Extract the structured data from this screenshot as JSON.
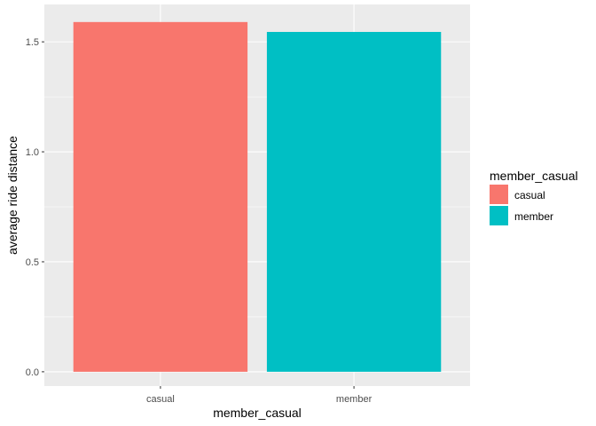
{
  "chart_data": {
    "type": "bar",
    "categories": [
      "casual",
      "member"
    ],
    "values": [
      1.59,
      1.545
    ],
    "colors": [
      "#F8766D",
      "#00BFC4"
    ],
    "xlabel": "member_casual",
    "ylabel": "average ride distance",
    "ylim": [
      -0.065,
      1.67
    ],
    "yticks": [
      0.0,
      0.5,
      1.0,
      1.5
    ],
    "ytick_labels": [
      "0.0",
      "0.5",
      "1.0",
      "1.5"
    ],
    "grid": true,
    "panel_background": "#EBEBEB",
    "gridline_color": "#FFFFFF",
    "legend": {
      "title": "member_casual",
      "placement": "right",
      "entries": [
        {
          "label": "casual",
          "color": "#F8766D"
        },
        {
          "label": "member",
          "color": "#00BFC4"
        }
      ]
    }
  }
}
